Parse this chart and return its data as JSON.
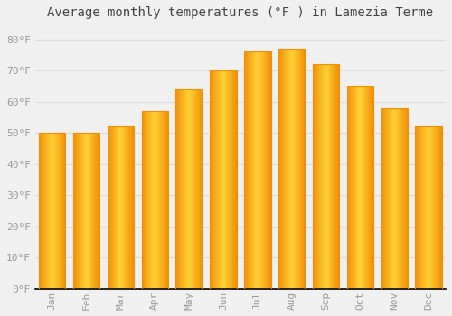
{
  "title": "Average monthly temperatures (°F ) in Lamezia Terme",
  "months": [
    "Jan",
    "Feb",
    "Mar",
    "Apr",
    "May",
    "Jun",
    "Jul",
    "Aug",
    "Sep",
    "Oct",
    "Nov",
    "Dec"
  ],
  "values": [
    50,
    50,
    52,
    57,
    64,
    70,
    76,
    77,
    72,
    65,
    58,
    52
  ],
  "bar_color_center": "#FFD050",
  "bar_color_edge": "#F0900A",
  "background_color": "#F0F0F0",
  "grid_color": "#DDDDDD",
  "tick_label_color": "#999999",
  "title_color": "#444444",
  "ylim": [
    0,
    85
  ],
  "yticks": [
    0,
    10,
    20,
    30,
    40,
    50,
    60,
    70,
    80
  ],
  "title_fontsize": 10,
  "tick_fontsize": 8,
  "bar_width": 0.78
}
